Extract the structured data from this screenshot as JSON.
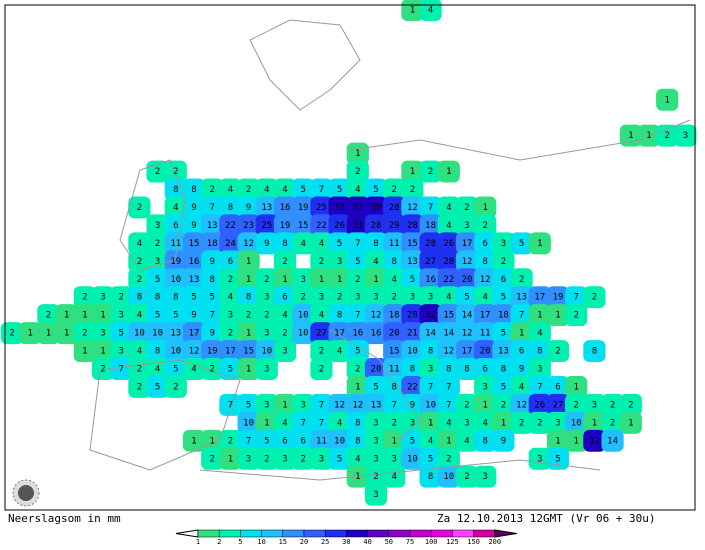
{
  "map": {
    "footer_left": "Neerslagsom in mm",
    "footer_right": "Za 12.10.2013 12GMT (Vr 06 + 30u)",
    "colorbar": {
      "levels": [
        1,
        2,
        5,
        10,
        15,
        20,
        25,
        30,
        40,
        50,
        75,
        100,
        125,
        150,
        200
      ],
      "colors": [
        "#ffffff",
        "#30e080",
        "#00f0b0",
        "#00e0f0",
        "#20c0ff",
        "#3090ff",
        "#3060ff",
        "#2030f0",
        "#2000c0",
        "#6000c0",
        "#9000c8",
        "#c000d0",
        "#e000e0",
        "#ff40ff",
        "#d000a0",
        "#600060"
      ]
    },
    "rows": [
      [
        null,
        null,
        null,
        null,
        null,
        null,
        null,
        null,
        null,
        null,
        null,
        null,
        null,
        null,
        null,
        null,
        null,
        null,
        null,
        null,
        null,
        null,
        1,
        4
      ],
      null,
      null,
      null,
      null,
      [
        null,
        null,
        null,
        null,
        null,
        null,
        null,
        null,
        null,
        null,
        null,
        null,
        null,
        null,
        null,
        null,
        null,
        null,
        null,
        null,
        null,
        null,
        null,
        null,
        null,
        null,
        null,
        null,
        null,
        null,
        null,
        null,
        null,
        null,
        null,
        null,
        1
      ],
      null,
      [
        null,
        null,
        null,
        null,
        null,
        null,
        null,
        null,
        null,
        null,
        null,
        null,
        null,
        null,
        null,
        null,
        null,
        null,
        null,
        null,
        null,
        null,
        null,
        null,
        null,
        null,
        null,
        null,
        null,
        null,
        null,
        null,
        null,
        null,
        1,
        1,
        2,
        3
      ],
      [
        null,
        null,
        null,
        null,
        null,
        null,
        null,
        null,
        null,
        null,
        null,
        null,
        null,
        null,
        null,
        null,
        null,
        null,
        null,
        1
      ],
      [
        null,
        null,
        null,
        null,
        null,
        null,
        null,
        null,
        2,
        2,
        null,
        null,
        null,
        null,
        null,
        null,
        null,
        null,
        null,
        2,
        null,
        null,
        1,
        2,
        1
      ],
      [
        null,
        null,
        null,
        null,
        null,
        null,
        null,
        null,
        null,
        8,
        8,
        2,
        4,
        2,
        4,
        4,
        5,
        7,
        5,
        4,
        5,
        2,
        2
      ],
      [
        null,
        null,
        null,
        null,
        null,
        null,
        null,
        2,
        null,
        4,
        9,
        7,
        8,
        9,
        13,
        16,
        19,
        25,
        32,
        32,
        30,
        28,
        12,
        7,
        4,
        2,
        1
      ],
      [
        null,
        null,
        null,
        null,
        null,
        null,
        null,
        null,
        3,
        6,
        9,
        13,
        22,
        23,
        25,
        19,
        15,
        22,
        26,
        31,
        28,
        29,
        28,
        18,
        4,
        3,
        2
      ],
      [
        null,
        null,
        null,
        null,
        null,
        null,
        null,
        4,
        2,
        11,
        15,
        18,
        24,
        12,
        9,
        8,
        4,
        4,
        5,
        7,
        8,
        11,
        15,
        28,
        26,
        17,
        6,
        3,
        5,
        1
      ],
      [
        null,
        null,
        null,
        null,
        null,
        null,
        null,
        2,
        3,
        19,
        16,
        9,
        6,
        1,
        null,
        2,
        null,
        2,
        3,
        5,
        4,
        8,
        13,
        27,
        28,
        12,
        8,
        2
      ],
      [
        null,
        null,
        null,
        null,
        null,
        null,
        null,
        2,
        5,
        10,
        13,
        8,
        2,
        1,
        2,
        1,
        3,
        1,
        1,
        2,
        1,
        4,
        5,
        16,
        22,
        20,
        12,
        6,
        2
      ],
      [
        null,
        null,
        null,
        null,
        2,
        3,
        2,
        8,
        8,
        8,
        5,
        5,
        4,
        8,
        3,
        6,
        2,
        3,
        2,
        3,
        3,
        2,
        3,
        3,
        4,
        5,
        4,
        5,
        13,
        17,
        19,
        7,
        2
      ],
      [
        null,
        null,
        2,
        1,
        1,
        1,
        3,
        4,
        5,
        5,
        9,
        7,
        3,
        2,
        2,
        4,
        10,
        4,
        8,
        7,
        12,
        18,
        28,
        32,
        15,
        14,
        17,
        18,
        7,
        1,
        1,
        2
      ],
      [
        2,
        1,
        1,
        1,
        2,
        3,
        5,
        10,
        10,
        13,
        17,
        9,
        2,
        1,
        3,
        2,
        10,
        27,
        17,
        16,
        16,
        20,
        21,
        14,
        14,
        12,
        11,
        5,
        1,
        4
      ],
      [
        null,
        null,
        null,
        null,
        1,
        1,
        3,
        4,
        8,
        10,
        12,
        19,
        17,
        15,
        10,
        3,
        null,
        2,
        4,
        5,
        null,
        15,
        10,
        8,
        12,
        17,
        20,
        13,
        6,
        8,
        2,
        null,
        8
      ],
      [
        null,
        null,
        null,
        null,
        null,
        2,
        7,
        2,
        4,
        5,
        4,
        2,
        5,
        1,
        3,
        null,
        null,
        2,
        null,
        2,
        20,
        11,
        8,
        3,
        8,
        8,
        6,
        8,
        9,
        3
      ],
      [
        null,
        null,
        null,
        null,
        null,
        null,
        null,
        2,
        5,
        2,
        null,
        null,
        null,
        null,
        null,
        null,
        null,
        null,
        null,
        1,
        5,
        8,
        22,
        7,
        7,
        null,
        3,
        5,
        4,
        7,
        6,
        1
      ],
      [
        null,
        null,
        null,
        null,
        null,
        null,
        null,
        null,
        null,
        null,
        null,
        null,
        7,
        5,
        3,
        1,
        3,
        7,
        12,
        12,
        13,
        7,
        9,
        10,
        7,
        2,
        1,
        2,
        12,
        26,
        27,
        2,
        3,
        2,
        2
      ],
      [
        null,
        null,
        null,
        null,
        null,
        null,
        null,
        null,
        null,
        null,
        null,
        null,
        null,
        10,
        1,
        4,
        7,
        7,
        4,
        8,
        3,
        2,
        3,
        1,
        4,
        3,
        4,
        1,
        2,
        2,
        3,
        10,
        1,
        2,
        1
      ],
      [
        null,
        null,
        null,
        null,
        null,
        null,
        null,
        null,
        null,
        null,
        1,
        1,
        2,
        7,
        5,
        6,
        6,
        11,
        10,
        8,
        3,
        1,
        5,
        4,
        1,
        4,
        8,
        9,
        null,
        null,
        1,
        1,
        32,
        14
      ],
      [
        null,
        null,
        null,
        null,
        null,
        null,
        null,
        null,
        null,
        null,
        null,
        2,
        1,
        3,
        2,
        3,
        2,
        3,
        5,
        4,
        3,
        3,
        10,
        5,
        2,
        null,
        null,
        null,
        null,
        3,
        5
      ],
      [
        null,
        null,
        null,
        null,
        null,
        null,
        null,
        null,
        null,
        null,
        null,
        null,
        null,
        null,
        null,
        null,
        null,
        null,
        null,
        1,
        2,
        4,
        null,
        8,
        10,
        2,
        3
      ],
      [
        null,
        null,
        null,
        null,
        null,
        null,
        null,
        null,
        null,
        null,
        null,
        null,
        null,
        null,
        null,
        null,
        null,
        null,
        null,
        null,
        3
      ]
    ]
  }
}
